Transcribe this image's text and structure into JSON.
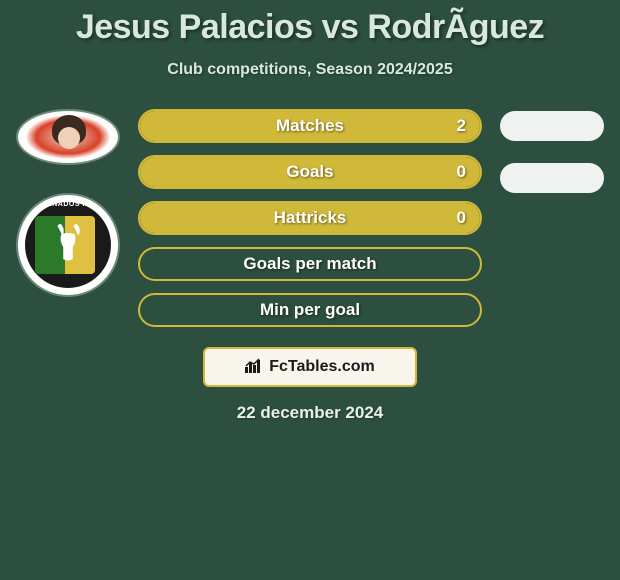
{
  "title": "Jesus Palacios vs RodrÃ­guez",
  "subtitle": "Club competitions, Season 2024/2025",
  "player1": {
    "name": "Jesus Palacios"
  },
  "player2": {
    "name": "RodrÃ­guez",
    "badge_text": "ENADOS F.",
    "badge_sub": "YUCATAN"
  },
  "stats": [
    {
      "label": "Matches",
      "value": "2",
      "fill_pct": 100,
      "show_value": true,
      "right_pill": true
    },
    {
      "label": "Goals",
      "value": "0",
      "fill_pct": 100,
      "show_value": true,
      "right_pill": true
    },
    {
      "label": "Hattricks",
      "value": "0",
      "fill_pct": 100,
      "show_value": true,
      "right_pill": false
    },
    {
      "label": "Goals per match",
      "value": "",
      "fill_pct": 0,
      "show_value": false,
      "right_pill": false
    },
    {
      "label": "Min per goal",
      "value": "",
      "fill_pct": 0,
      "show_value": false,
      "right_pill": false
    }
  ],
  "colors": {
    "background": "#2d4f3f",
    "accent": "#d0b838",
    "text_light": "#d8e8e0",
    "pill_bg": "#eef2f0",
    "badge_bg": "#f8f6ec"
  },
  "footer": {
    "site_name": "FcTables.com",
    "date": "22 december 2024"
  }
}
